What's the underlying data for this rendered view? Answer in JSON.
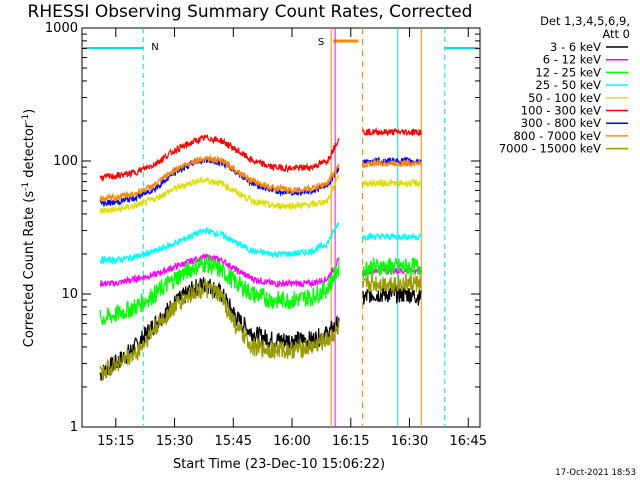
{
  "chart_data": {
    "type": "line",
    "title": "RHESSI Observing Summary Count Rates, Corrected",
    "xlabel": "Start Time (23-Dec-10 15:06:22)",
    "ylabel_main": "Corrected Count Rate (s",
    "ylabel_exp1": "-1",
    "ylabel_mid": " detector",
    "ylabel_exp2": "-1",
    "ylabel_end": ")",
    "yscale": "log",
    "ylim": [
      1,
      1000
    ],
    "xlim": [
      "15:06:22",
      "16:48:00"
    ],
    "x_tick_labels": [
      "15:15",
      "15:30",
      "15:45",
      "16:00",
      "16:15",
      "16:30",
      "16:45"
    ],
    "y_tick_labels": [
      "1",
      "10",
      "100",
      "1000"
    ],
    "legend_header": [
      "Det 1,3,4,5,6,9,",
      "Att 0"
    ],
    "legend_placement": "right",
    "markers": [
      {
        "label": "N",
        "color": "#00dddd",
        "from": "15:22",
        "to": "16:27"
      },
      {
        "label": "S",
        "color": "#ff8800",
        "from": "16:10",
        "to": "16:18"
      }
    ],
    "x": [
      "15:11",
      "15:15",
      "15:20",
      "15:25",
      "15:30",
      "15:35",
      "15:38",
      "15:42",
      "15:46",
      "15:50",
      "15:55",
      "16:00",
      "16:05",
      "16:09",
      "16:12",
      "16:18",
      "16:20",
      "16:25",
      "16:30",
      "16:33"
    ],
    "series": [
      {
        "name": "3 - 6 keV",
        "color": "#000000",
        "values": [
          2.5,
          3,
          4,
          6,
          8.5,
          11,
          12,
          10,
          6.5,
          5,
          4.5,
          4.5,
          4.5,
          5,
          6,
          9,
          10,
          10,
          10,
          9.5
        ]
      },
      {
        "name": "6 - 12 keV",
        "color": "#ff00ff",
        "values": [
          12,
          12,
          13,
          14,
          16,
          18,
          19,
          18,
          15,
          13,
          12,
          12,
          12,
          13,
          18,
          14,
          15,
          15,
          15,
          15
        ]
      },
      {
        "name": "12 - 25 keV",
        "color": "#00ff00",
        "values": [
          6.5,
          7,
          8,
          10,
          13,
          16,
          17,
          15,
          12,
          10,
          9,
          9,
          9.5,
          11,
          16,
          15,
          16,
          16,
          16,
          16
        ]
      },
      {
        "name": "25 - 50 keV",
        "color": "#00ffff",
        "values": [
          18,
          18,
          19,
          21,
          24,
          28,
          30,
          28,
          24,
          21,
          20,
          20,
          21,
          24,
          35,
          27,
          27,
          27,
          27,
          27
        ]
      },
      {
        "name": "50 - 100 keV",
        "color": "#dddd00",
        "values": [
          42,
          43,
          46,
          52,
          62,
          70,
          72,
          68,
          58,
          50,
          46,
          46,
          47,
          50,
          80,
          68,
          68,
          68,
          68,
          68
        ]
      },
      {
        "name": "100 - 300 keV",
        "color": "#ff0000",
        "values": [
          75,
          77,
          82,
          95,
          120,
          140,
          150,
          142,
          120,
          100,
          90,
          88,
          90,
          100,
          150,
          165,
          165,
          165,
          165,
          165
        ]
      },
      {
        "name": "300 - 800 keV",
        "color": "#0000ff",
        "values": [
          48,
          49,
          53,
          62,
          82,
          98,
          102,
          98,
          82,
          68,
          60,
          58,
          60,
          65,
          90,
          96,
          100,
          100,
          100,
          100
        ]
      },
      {
        "name": "800 - 7000 keV",
        "color": "#ff8800",
        "values": [
          52,
          53,
          57,
          66,
          86,
          100,
          105,
          100,
          85,
          70,
          63,
          60,
          62,
          68,
          92,
          92,
          96,
          96,
          96,
          96
        ]
      },
      {
        "name": "7000 - 15000 keV",
        "color": "#999900",
        "values": [
          2.5,
          3,
          3.5,
          5.5,
          8,
          10.5,
          11,
          9.5,
          5.5,
          4,
          3.8,
          3.8,
          4,
          4.5,
          5.5,
          11,
          12,
          12,
          12,
          12
        ]
      }
    ]
  },
  "footer": {
    "date": "17-Oct-2021 18:53"
  }
}
